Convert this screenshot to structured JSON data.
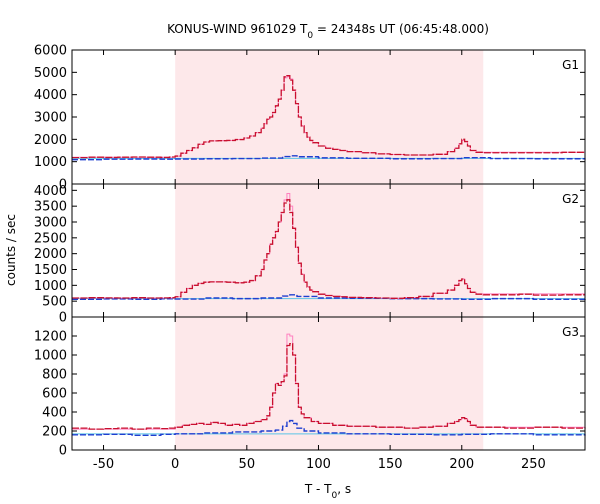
{
  "chart_data": {
    "type": "line",
    "title": {
      "prefix": "KONUS-WIND 961029 T",
      "sub": "0",
      "suffix": " = 24348s UT (06:45:48.000)"
    },
    "xlabel": {
      "prefix": "T - T",
      "sub": "0",
      "suffix": ", s"
    },
    "ylabel": "counts / sec",
    "xlim": [
      -72,
      286
    ],
    "xticks": [
      "-50",
      "0",
      "50",
      "100",
      "150",
      "200",
      "250"
    ],
    "xtick_values": [
      -50,
      0,
      50,
      100,
      150,
      200,
      250
    ],
    "highlight_interval": [
      0,
      215
    ],
    "colors": {
      "highlight": "#fde8ea",
      "counts": "#c8102e",
      "model": "#ff80c0",
      "background_fit": "#1f3fd0",
      "background_line": "#5bc4e6",
      "frame": "#000000"
    },
    "panels": [
      {
        "label": "G1",
        "ylim": [
          0,
          6000
        ],
        "yticks": [
          "0",
          "1000",
          "2000",
          "3000",
          "4000",
          "5000",
          "6000"
        ],
        "ytick_values": [
          0,
          1000,
          2000,
          3000,
          4000,
          5000,
          6000
        ],
        "background_level": 1150,
        "counts": {
          "x": [
            -72,
            -60,
            -50,
            -40,
            -30,
            -20,
            -10,
            -4,
            0,
            4,
            8,
            12,
            16,
            20,
            24,
            30,
            36,
            42,
            48,
            52,
            56,
            60,
            62,
            64,
            66,
            68,
            70,
            72,
            74,
            76,
            78,
            80,
            82,
            84,
            86,
            88,
            90,
            92,
            94,
            96,
            100,
            105,
            110,
            115,
            120,
            130,
            140,
            150,
            160,
            170,
            180,
            190,
            195,
            198,
            200,
            202,
            204,
            206,
            210,
            215,
            230,
            250,
            270,
            286
          ],
          "y": [
            1180,
            1200,
            1190,
            1200,
            1210,
            1200,
            1190,
            1210,
            1250,
            1380,
            1500,
            1620,
            1780,
            1880,
            1930,
            1940,
            1950,
            1990,
            2060,
            2150,
            2300,
            2500,
            2700,
            2900,
            3000,
            3200,
            3500,
            3800,
            4200,
            4800,
            4850,
            4650,
            4200,
            3600,
            3000,
            2600,
            2300,
            2100,
            1950,
            1850,
            1700,
            1600,
            1550,
            1500,
            1450,
            1400,
            1350,
            1320,
            1300,
            1300,
            1330,
            1450,
            1600,
            1800,
            2000,
            1900,
            1700,
            1500,
            1420,
            1400,
            1400,
            1400,
            1420,
            1420
          ]
        },
        "model": {
          "x": [
            -72,
            -10,
            0,
            4,
            8,
            12,
            16,
            20,
            24,
            30,
            36,
            42,
            48,
            52,
            56,
            60,
            62,
            64,
            66,
            68,
            70,
            72,
            74,
            76,
            78,
            80,
            82,
            84,
            86,
            88,
            90,
            92,
            94,
            96,
            100,
            105,
            110,
            115,
            120,
            130,
            140,
            150,
            160,
            170,
            180,
            190,
            195,
            198,
            200,
            202,
            204,
            206,
            210,
            215,
            286
          ],
          "y": [
            1200,
            1200,
            1250,
            1380,
            1500,
            1620,
            1780,
            1880,
            1930,
            1940,
            1950,
            1990,
            2060,
            2150,
            2300,
            2500,
            2700,
            2900,
            3000,
            3200,
            3500,
            3800,
            4200,
            4750,
            4800,
            4700,
            4200,
            3600,
            3000,
            2600,
            2300,
            2100,
            1950,
            1850,
            1700,
            1600,
            1550,
            1500,
            1450,
            1400,
            1350,
            1320,
            1300,
            1300,
            1330,
            1450,
            1600,
            1800,
            1950,
            1900,
            1700,
            1500,
            1420,
            1420,
            1420
          ]
        },
        "background_fit": {
          "x": [
            -72,
            -50,
            -30,
            -10,
            0,
            20,
            40,
            60,
            75,
            80,
            85,
            100,
            120,
            150,
            180,
            200,
            220,
            250,
            286
          ],
          "y": [
            1090,
            1110,
            1120,
            1110,
            1120,
            1130,
            1140,
            1160,
            1230,
            1260,
            1220,
            1170,
            1150,
            1130,
            1140,
            1180,
            1140,
            1130,
            1140
          ]
        }
      },
      {
        "label": "G2",
        "ylim": [
          0,
          4200
        ],
        "yticks": [
          "0",
          "500",
          "1000",
          "1500",
          "2000",
          "2500",
          "3000",
          "3500",
          "4000"
        ],
        "ytick_values": [
          0,
          500,
          1000,
          1500,
          2000,
          2500,
          3000,
          3500,
          4000
        ],
        "background_level": 580,
        "counts": {
          "x": [
            -72,
            -60,
            -50,
            -40,
            -30,
            -20,
            -10,
            -4,
            0,
            4,
            8,
            12,
            16,
            20,
            24,
            30,
            36,
            42,
            48,
            52,
            56,
            60,
            62,
            64,
            66,
            68,
            70,
            72,
            74,
            76,
            78,
            80,
            82,
            84,
            86,
            88,
            90,
            92,
            94,
            96,
            100,
            105,
            110,
            115,
            120,
            130,
            140,
            150,
            160,
            170,
            180,
            190,
            195,
            198,
            200,
            202,
            204,
            206,
            210,
            215,
            230,
            240,
            250,
            270,
            286
          ],
          "y": [
            600,
            610,
            605,
            600,
            610,
            600,
            605,
            610,
            640,
            780,
            900,
            1000,
            1060,
            1100,
            1110,
            1110,
            1100,
            1080,
            1100,
            1150,
            1300,
            1500,
            1800,
            2000,
            2300,
            2500,
            2700,
            3000,
            3300,
            3600,
            3700,
            3300,
            2800,
            2200,
            1700,
            1350,
            1100,
            950,
            850,
            800,
            720,
            680,
            650,
            640,
            620,
            610,
            600,
            590,
            610,
            650,
            750,
            850,
            1000,
            1150,
            1200,
            1050,
            900,
            780,
            720,
            700,
            700,
            720,
            690,
            700,
            700
          ]
        },
        "model": {
          "x": [
            -72,
            -10,
            0,
            4,
            8,
            12,
            16,
            20,
            24,
            30,
            36,
            42,
            48,
            52,
            56,
            60,
            62,
            64,
            66,
            68,
            70,
            72,
            74,
            76,
            78,
            80,
            82,
            84,
            86,
            88,
            90,
            92,
            94,
            96,
            100,
            105,
            110,
            115,
            120,
            130,
            140,
            150,
            160,
            170,
            180,
            190,
            195,
            198,
            200,
            202,
            204,
            206,
            210,
            215,
            286
          ],
          "y": [
            600,
            600,
            640,
            780,
            900,
            1000,
            1060,
            1100,
            1110,
            1110,
            1100,
            1080,
            1100,
            1150,
            1300,
            1500,
            1800,
            2000,
            2300,
            2500,
            2700,
            3000,
            3300,
            3700,
            3900,
            3500,
            2800,
            2200,
            1700,
            1350,
            1100,
            950,
            850,
            800,
            720,
            680,
            650,
            640,
            620,
            610,
            600,
            590,
            610,
            650,
            750,
            850,
            1000,
            1150,
            1200,
            1050,
            900,
            780,
            730,
            730,
            730
          ]
        },
        "background_fit": {
          "x": [
            -72,
            -50,
            -30,
            -10,
            0,
            20,
            40,
            60,
            75,
            80,
            85,
            100,
            120,
            150,
            180,
            200,
            220,
            250,
            286
          ],
          "y": [
            560,
            570,
            560,
            575,
            565,
            600,
            580,
            600,
            660,
            700,
            650,
            600,
            590,
            580,
            570,
            560,
            580,
            560,
            570
          ]
        }
      },
      {
        "label": "G3",
        "ylim": [
          0,
          1400
        ],
        "yticks": [
          "0",
          "200",
          "400",
          "600",
          "800",
          "1000",
          "1200"
        ],
        "ytick_values": [
          0,
          200,
          400,
          600,
          800,
          1000,
          1200
        ],
        "background_level": 170,
        "counts": {
          "x": [
            -72,
            -60,
            -50,
            -40,
            -30,
            -20,
            -10,
            -4,
            0,
            5,
            10,
            15,
            20,
            25,
            30,
            35,
            40,
            45,
            50,
            55,
            60,
            64,
            66,
            68,
            70,
            72,
            74,
            76,
            78,
            80,
            82,
            84,
            86,
            88,
            90,
            95,
            100,
            110,
            120,
            130,
            140,
            150,
            160,
            170,
            180,
            190,
            195,
            198,
            200,
            202,
            204,
            206,
            210,
            215,
            230,
            250,
            270,
            286
          ],
          "y": [
            230,
            220,
            225,
            230,
            220,
            230,
            225,
            230,
            240,
            260,
            270,
            280,
            270,
            290,
            280,
            260,
            270,
            260,
            280,
            300,
            320,
            360,
            450,
            600,
            700,
            680,
            720,
            780,
            1100,
            1120,
            1000,
            700,
            450,
            380,
            340,
            300,
            280,
            260,
            250,
            250,
            240,
            240,
            230,
            240,
            250,
            280,
            300,
            320,
            340,
            330,
            300,
            260,
            240,
            240,
            230,
            240,
            230,
            240
          ]
        },
        "model": {
          "x": [
            -72,
            -10,
            0,
            5,
            10,
            15,
            20,
            25,
            30,
            35,
            40,
            45,
            50,
            55,
            60,
            64,
            66,
            68,
            70,
            72,
            74,
            76,
            78,
            80,
            82,
            84,
            86,
            88,
            90,
            95,
            100,
            110,
            120,
            130,
            140,
            150,
            160,
            170,
            180,
            190,
            195,
            198,
            200,
            202,
            204,
            206,
            210,
            215,
            286
          ],
          "y": [
            220,
            220,
            240,
            260,
            270,
            280,
            270,
            290,
            280,
            260,
            270,
            260,
            280,
            300,
            320,
            360,
            450,
            600,
            700,
            680,
            720,
            800,
            1220,
            1200,
            1000,
            700,
            450,
            380,
            340,
            300,
            280,
            260,
            250,
            250,
            240,
            240,
            230,
            240,
            250,
            280,
            300,
            320,
            340,
            330,
            300,
            260,
            240,
            240,
            240
          ]
        },
        "background_fit": {
          "x": [
            -72,
            -50,
            -30,
            -10,
            0,
            20,
            40,
            60,
            70,
            75,
            78,
            80,
            82,
            85,
            90,
            100,
            120,
            150,
            180,
            200,
            220,
            250,
            286
          ],
          "y": [
            160,
            165,
            155,
            165,
            170,
            180,
            190,
            200,
            210,
            250,
            300,
            310,
            280,
            230,
            200,
            180,
            170,
            165,
            160,
            165,
            170,
            160,
            165
          ]
        }
      }
    ]
  }
}
